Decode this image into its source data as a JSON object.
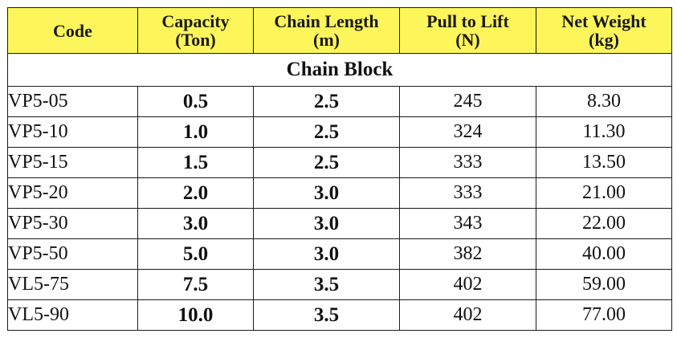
{
  "table": {
    "headers": [
      {
        "line1": "Code",
        "line2": ""
      },
      {
        "line1": "Capacity",
        "line2": "(Ton)"
      },
      {
        "line1": "Chain Length",
        "line2": "(m)"
      },
      {
        "line1": "Pull to Lift",
        "line2": "(N)"
      },
      {
        "line1": "Net Weight",
        "line2": "(kg)"
      }
    ],
    "section_title": "Chain Block",
    "header_color": "#fdf65a",
    "rows": [
      {
        "code": "VP5-05",
        "capacity": "0.5",
        "chain_length": "2.5",
        "pull": "245",
        "weight": "8.30"
      },
      {
        "code": "VP5-10",
        "capacity": "1.0",
        "chain_length": "2.5",
        "pull": "324",
        "weight": "11.30"
      },
      {
        "code": "VP5-15",
        "capacity": "1.5",
        "chain_length": "2.5",
        "pull": "333",
        "weight": "13.50"
      },
      {
        "code": "VP5-20",
        "capacity": "2.0",
        "chain_length": "3.0",
        "pull": "333",
        "weight": "21.00"
      },
      {
        "code": "VP5-30",
        "capacity": "3.0",
        "chain_length": "3.0",
        "pull": "343",
        "weight": "22.00"
      },
      {
        "code": "VP5-50",
        "capacity": "5.0",
        "chain_length": "3.0",
        "pull": "382",
        "weight": "40.00"
      },
      {
        "code": "VL5-75",
        "capacity": "7.5",
        "chain_length": "3.5",
        "pull": "402",
        "weight": "59.00"
      },
      {
        "code": "VL5-90",
        "capacity": "10.0",
        "chain_length": "3.5",
        "pull": "402",
        "weight": "77.00"
      }
    ]
  }
}
